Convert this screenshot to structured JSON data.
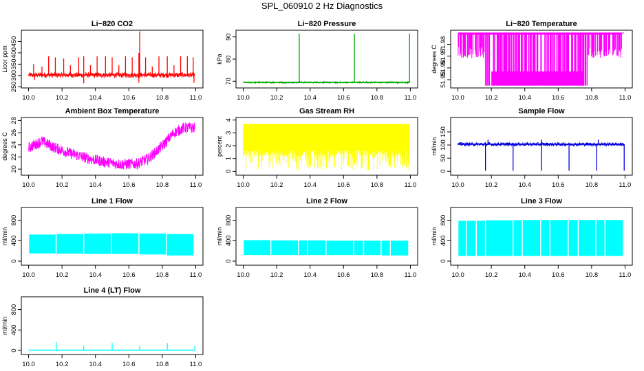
{
  "figure": {
    "title": "SPL_060910  2 Hz Diagnostics"
  },
  "chart_data": [
    {
      "id": "p1",
      "type": "line",
      "title": "Li−820 CO2",
      "ylabel": "Licor ppm",
      "color": "#ff0000",
      "xlim": [
        10.0,
        11.0
      ],
      "ylim": [
        245,
        500
      ],
      "xticks": [
        10.0,
        10.2,
        10.4,
        10.6,
        10.8,
        11.0
      ],
      "xtick_labels": [
        "10.0",
        "10.2",
        "10.4",
        "10.6",
        "10.8",
        "11.0"
      ],
      "yticks": [
        250,
        300,
        350,
        400,
        450
      ],
      "ytick_labels": [
        "250",
        "300",
        "350",
        "400",
        "450"
      ],
      "pattern": "noise",
      "base": 302,
      "band": [
        290,
        314
      ],
      "spikes": [
        [
          10.03,
          350
        ],
        [
          10.08,
          340
        ],
        [
          10.12,
          385
        ],
        [
          10.16,
          380
        ],
        [
          10.21,
          375
        ],
        [
          10.25,
          345
        ],
        [
          10.3,
          380
        ],
        [
          10.33,
          385
        ],
        [
          10.37,
          345
        ],
        [
          10.41,
          385
        ],
        [
          10.46,
          385
        ],
        [
          10.5,
          380
        ],
        [
          10.54,
          345
        ],
        [
          10.58,
          385
        ],
        [
          10.62,
          380
        ],
        [
          10.66,
          400
        ],
        [
          10.665,
          495
        ],
        [
          10.7,
          380
        ],
        [
          10.74,
          340
        ],
        [
          10.78,
          385
        ],
        [
          10.83,
          385
        ],
        [
          10.87,
          345
        ],
        [
          10.91,
          385
        ],
        [
          10.95,
          385
        ],
        [
          10.985,
          380
        ]
      ],
      "dips": [
        [
          10.035,
          280
        ],
        [
          10.33,
          265
        ],
        [
          10.66,
          268
        ],
        [
          10.99,
          268
        ]
      ]
    },
    {
      "id": "p2",
      "type": "line",
      "title": "Li−820 Pressure",
      "ylabel": "kPa",
      "color": "#00aa00",
      "xlim": [
        10.0,
        11.0
      ],
      "ylim": [
        67,
        93
      ],
      "xticks": [
        10.0,
        10.2,
        10.4,
        10.6,
        10.8,
        11.0
      ],
      "xtick_labels": [
        "10.0",
        "10.2",
        "10.4",
        "10.6",
        "10.8",
        "11.0"
      ],
      "yticks": [
        70,
        80,
        90
      ],
      "ytick_labels": [
        "70",
        "80",
        "90"
      ],
      "pattern": "flat",
      "base": 69.5,
      "band": [
        69.2,
        69.8
      ],
      "spikes": [
        [
          10.335,
          91.5
        ],
        [
          10.665,
          91.5
        ],
        [
          10.995,
          91.5
        ]
      ],
      "dips": []
    },
    {
      "id": "p3",
      "type": "line",
      "title": "Li−820 Temperature",
      "ylabel": "degrees C",
      "color": "#ff00ff",
      "xlim": [
        10.0,
        11.0
      ],
      "ylim": [
        51.943,
        51.992
      ],
      "xticks": [
        10.0,
        10.2,
        10.4,
        10.6,
        10.8,
        11.0
      ],
      "xtick_labels": [
        "10.0",
        "10.2",
        "10.4",
        "10.6",
        "10.8",
        "11.0"
      ],
      "yticks": [
        51.95,
        51.96,
        51.97,
        51.98
      ],
      "ytick_labels": [
        "51.95",
        "51.96",
        "51.97",
        "51.98"
      ],
      "pattern": "digital",
      "hi": 51.99,
      "lo": 51.945,
      "lo_range": [
        10.16,
        10.78
      ],
      "end": 10.98
    },
    {
      "id": "p4",
      "type": "line",
      "title": "Ambient Box Temperature",
      "ylabel": "degrees C",
      "color": "#ff00ff",
      "xlim": [
        10.0,
        11.0
      ],
      "ylim": [
        19.0,
        28.5
      ],
      "xticks": [
        10.0,
        10.2,
        10.4,
        10.6,
        10.8,
        11.0
      ],
      "xtick_labels": [
        "10.0",
        "10.2",
        "10.4",
        "10.6",
        "10.8",
        "11.0"
      ],
      "yticks": [
        20,
        22,
        24,
        26,
        28
      ],
      "ytick_labels": [
        "20",
        "22",
        "24",
        "26",
        "28"
      ],
      "pattern": "curve",
      "curve": [
        [
          10.0,
          23.5
        ],
        [
          10.08,
          24.6
        ],
        [
          10.15,
          23.6
        ],
        [
          10.25,
          22.6
        ],
        [
          10.35,
          21.8
        ],
        [
          10.45,
          21.2
        ],
        [
          10.55,
          20.8
        ],
        [
          10.65,
          20.9
        ],
        [
          10.72,
          21.8
        ],
        [
          10.8,
          23.8
        ],
        [
          10.87,
          26.0
        ],
        [
          10.93,
          26.8
        ],
        [
          10.99,
          26.8
        ]
      ],
      "band_halfwidth": 0.9
    },
    {
      "id": "p5",
      "type": "line",
      "title": "Gas Stream RH",
      "ylabel": "percent",
      "color": "#ffff00",
      "xlim": [
        10.0,
        11.0
      ],
      "ylim": [
        -0.3,
        4.2
      ],
      "xticks": [
        10.0,
        10.2,
        10.4,
        10.6,
        10.8,
        11.0
      ],
      "xtick_labels": [
        "10.0",
        "10.2",
        "10.4",
        "10.6",
        "10.8",
        "11.0"
      ],
      "yticks": [
        0,
        1,
        2,
        3,
        4
      ],
      "ytick_labels": [
        "0",
        "1",
        "2",
        "3",
        "4"
      ],
      "pattern": "fill",
      "top": 3.7,
      "bottom": 0.05
    },
    {
      "id": "p6",
      "type": "line",
      "title": "Sample Flow",
      "ylabel": "ml/min",
      "color": "#0000dd",
      "xlim": [
        10.0,
        11.0
      ],
      "ylim": [
        -15,
        205
      ],
      "xticks": [
        10.0,
        10.2,
        10.4,
        10.6,
        10.8,
        11.0
      ],
      "xtick_labels": [
        "10.0",
        "10.2",
        "10.4",
        "10.6",
        "10.8",
        "11.0"
      ],
      "yticks": [
        0,
        50,
        100,
        150
      ],
      "ytick_labels": [
        "0",
        "50",
        "100",
        "150"
      ],
      "pattern": "noise",
      "base": 103,
      "band": [
        96,
        110
      ],
      "spikes": [
        [
          10.02,
          110
        ],
        [
          10.18,
          120
        ],
        [
          10.5,
          120
        ],
        [
          10.84,
          120
        ],
        [
          10.5,
          118
        ]
      ],
      "dips": [
        [
          10.165,
          2
        ],
        [
          10.33,
          2
        ],
        [
          10.5,
          2
        ],
        [
          10.665,
          2
        ],
        [
          10.83,
          2
        ],
        [
          10.995,
          2
        ]
      ]
    },
    {
      "id": "p7",
      "type": "line",
      "title": "Line 1 Flow",
      "ylabel": "ml/min",
      "color": "#00ffff",
      "xlim": [
        10.0,
        11.0
      ],
      "ylim": [
        -80,
        1050
      ],
      "xticks": [
        10.0,
        10.2,
        10.4,
        10.6,
        10.8,
        11.0
      ],
      "xtick_labels": [
        "10.0",
        "10.2",
        "10.4",
        "10.6",
        "10.8",
        "11.0"
      ],
      "yticks": [
        0,
        400,
        800
      ],
      "ytick_labels": [
        "0",
        "400",
        "800"
      ],
      "pattern": "block",
      "top": [
        520,
        530,
        540,
        545,
        545,
        540,
        530,
        525
      ],
      "bottom": [
        150,
        145,
        140,
        140,
        140,
        130,
        110,
        110
      ],
      "gaps": [
        10.0,
        10.165,
        10.33,
        10.495,
        10.66,
        10.825,
        10.99
      ]
    },
    {
      "id": "p8",
      "type": "line",
      "title": "Line 2 Flow",
      "ylabel": "ml/min",
      "color": "#00ffff",
      "xlim": [
        10.0,
        11.0
      ],
      "ylim": [
        -80,
        1050
      ],
      "xticks": [
        10.0,
        10.2,
        10.4,
        10.6,
        10.8,
        11.0
      ],
      "xtick_labels": [
        "10.0",
        "10.2",
        "10.4",
        "10.6",
        "10.8",
        "11.0"
      ],
      "yticks": [
        0,
        400,
        800
      ],
      "ytick_labels": [
        "0",
        "400",
        "800"
      ],
      "pattern": "block",
      "top": [
        410,
        405,
        405,
        405,
        400,
        400,
        400,
        400
      ],
      "bottom": [
        120,
        120,
        120,
        120,
        120,
        120,
        110,
        110
      ],
      "gaps": [
        10.0,
        10.165,
        10.33,
        10.385,
        10.495,
        10.66,
        10.72,
        10.825,
        10.88,
        10.99
      ]
    },
    {
      "id": "p9",
      "type": "line",
      "title": "Line 3 Flow",
      "ylabel": "ml/min",
      "color": "#00ffff",
      "xlim": [
        10.0,
        11.0
      ],
      "ylim": [
        -80,
        1050
      ],
      "xticks": [
        10.0,
        10.2,
        10.4,
        10.6,
        10.8,
        11.0
      ],
      "xtick_labels": [
        "10.0",
        "10.2",
        "10.4",
        "10.6",
        "10.8",
        "11.0"
      ],
      "yticks": [
        0,
        400,
        800
      ],
      "ytick_labels": [
        "0",
        "400",
        "800"
      ],
      "pattern": "block",
      "top": [
        790,
        800,
        800,
        805,
        805,
        805,
        805,
        805
      ],
      "bottom": [
        100,
        100,
        100,
        100,
        100,
        100,
        100,
        100
      ],
      "gaps": [
        10.0,
        10.05,
        10.11,
        10.165,
        10.33,
        10.385,
        10.495,
        10.55,
        10.66,
        10.72,
        10.825,
        10.88,
        10.99
      ]
    },
    {
      "id": "p10",
      "type": "line",
      "title": "Line 4 (LT) Flow",
      "ylabel": "ml/min",
      "color": "#00ffff",
      "xlim": [
        10.0,
        11.0
      ],
      "ylim": [
        -80,
        1050
      ],
      "xticks": [
        10.0,
        10.2,
        10.4,
        10.6,
        10.8,
        11.0
      ],
      "xtick_labels": [
        "10.0",
        "10.2",
        "10.4",
        "10.6",
        "10.8",
        "11.0"
      ],
      "yticks": [
        0,
        400,
        800
      ],
      "ytick_labels": [
        "0",
        "400",
        "800"
      ],
      "pattern": "noise",
      "base": 5,
      "band": [
        0,
        10
      ],
      "spikes": [
        [
          10.165,
          160
        ],
        [
          10.33,
          95
        ],
        [
          10.5,
          150
        ],
        [
          10.665,
          95
        ],
        [
          10.83,
          145
        ],
        [
          10.995,
          95
        ]
      ],
      "dips": []
    }
  ]
}
